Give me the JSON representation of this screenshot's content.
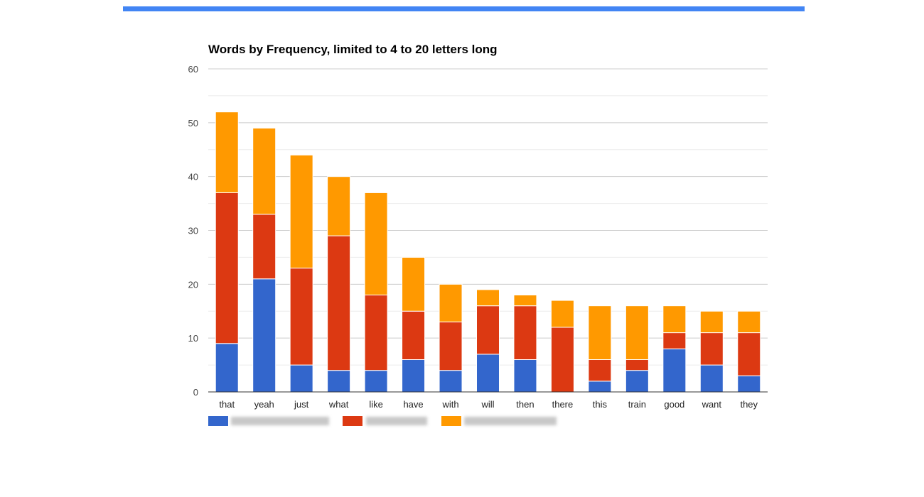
{
  "top_bar": {
    "color": "#4285f4"
  },
  "chart_data": {
    "type": "bar",
    "stacked": true,
    "title": "Words by Frequency, limited to 4 to 20 letters long",
    "xlabel": "",
    "ylabel": "",
    "ylim": [
      0,
      60
    ],
    "yticks": [
      "0",
      "10",
      "20",
      "30",
      "40",
      "50",
      "60"
    ],
    "grid": true,
    "legend": "bottom-left",
    "categories": [
      "that",
      "yeah",
      "just",
      "what",
      "like",
      "have",
      "with",
      "will",
      "then",
      "there",
      "this",
      "train",
      "good",
      "want",
      "they"
    ],
    "series": [
      {
        "color": "#3366cc",
        "values": [
          9,
          21,
          5,
          4,
          4,
          6,
          4,
          7,
          6,
          0,
          2,
          4,
          8,
          5,
          3
        ]
      },
      {
        "color": "#dc3912",
        "values": [
          28,
          12,
          18,
          25,
          14,
          9,
          9,
          9,
          10,
          12,
          4,
          2,
          3,
          6,
          8
        ]
      },
      {
        "color": "#ff9900",
        "values": [
          15,
          16,
          21,
          11,
          19,
          10,
          7,
          3,
          2,
          5,
          10,
          10,
          5,
          4,
          4
        ]
      }
    ]
  }
}
